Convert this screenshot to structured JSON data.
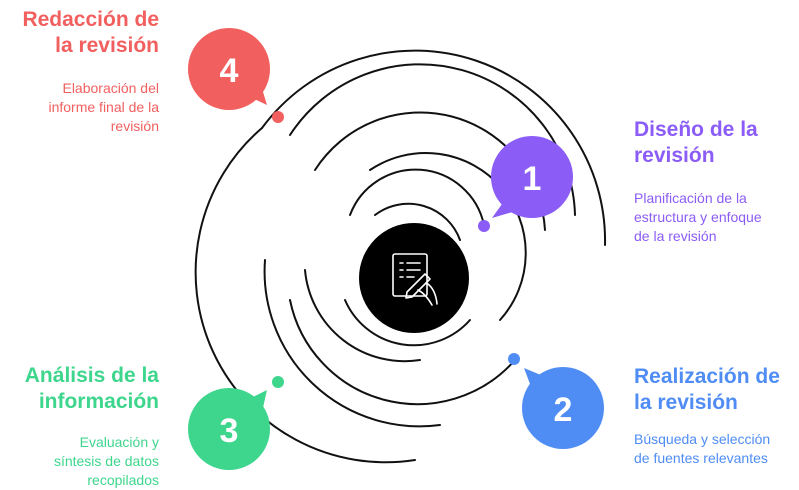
{
  "steps": [
    {
      "number": "1",
      "title_line1": "Diseño de la",
      "title_line2": "revisión",
      "desc_line1": "Planificación de la",
      "desc_line2": "estructura y enfoque",
      "desc_line3": "de la revisión",
      "color": "#8b5cf6"
    },
    {
      "number": "2",
      "title_line1": "Realización de",
      "title_line2": "la revisión",
      "desc_line1": "Búsqueda y selección",
      "desc_line2": "de fuentes relevantes",
      "color": "#4f8df5"
    },
    {
      "number": "3",
      "title_line1": "Análisis de la",
      "title_line2": "información",
      "desc_line1": "Evaluación y",
      "desc_line2": "síntesis de datos",
      "desc_line3": "recopilados",
      "color": "#3ed68d"
    },
    {
      "number": "4",
      "title_line1": "Redacción de",
      "title_line2": "la revisión",
      "desc_line1": "Elaboración del",
      "desc_line2": "informe final de la",
      "desc_line3": "revisión",
      "color": "#f25f5f"
    }
  ],
  "center_icon": "document-writing-icon",
  "line_color": "#111111",
  "center_color": "#000000"
}
